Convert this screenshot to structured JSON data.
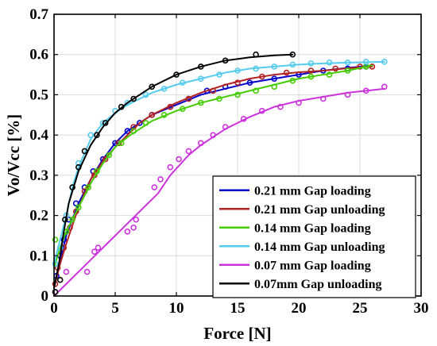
{
  "chart_data": {
    "type": "scatter",
    "xlabel": "Force [N]",
    "ylabel": "Vo/Vcc [%]",
    "xlim": [
      0,
      30
    ],
    "ylim": [
      0,
      0.7
    ],
    "xticks": [
      0,
      5,
      10,
      15,
      20,
      25,
      30
    ],
    "yticks": [
      0,
      0.1,
      0.2,
      0.3,
      0.4,
      0.5,
      0.6,
      0.7
    ],
    "xtick_labels": [
      "0",
      "5",
      "10",
      "15",
      "20",
      "25",
      "30"
    ],
    "ytick_labels": [
      "0",
      "0.1",
      "0.2",
      "0.3",
      "0.4",
      "0.5",
      "0.6",
      "0.7"
    ],
    "grid": true,
    "legend_position": "bottom-right",
    "series": [
      {
        "name": "0.21 mm Gap loading",
        "color": "#0000cc",
        "markers": [
          [
            0.2,
            0.05
          ],
          [
            0.5,
            0.1
          ],
          [
            0.8,
            0.14
          ],
          [
            1.2,
            0.19
          ],
          [
            1.8,
            0.23
          ],
          [
            2.5,
            0.27
          ],
          [
            3.2,
            0.31
          ],
          [
            4.0,
            0.34
          ],
          [
            5.0,
            0.38
          ],
          [
            6.0,
            0.41
          ],
          [
            7.0,
            0.43
          ],
          [
            8.0,
            0.45
          ],
          [
            9.5,
            0.47
          ],
          [
            11.0,
            0.49
          ],
          [
            12.5,
            0.51
          ],
          [
            14.0,
            0.52
          ],
          [
            16.0,
            0.53
          ],
          [
            18.0,
            0.54
          ],
          [
            20.0,
            0.55
          ],
          [
            22.0,
            0.56
          ],
          [
            24.0,
            0.565
          ],
          [
            25.5,
            0.57
          ]
        ],
        "line": [
          [
            0,
            0.02
          ],
          [
            0.5,
            0.09
          ],
          [
            1,
            0.15
          ],
          [
            1.5,
            0.19
          ],
          [
            2,
            0.23
          ],
          [
            3,
            0.29
          ],
          [
            4,
            0.34
          ],
          [
            5,
            0.38
          ],
          [
            6,
            0.41
          ],
          [
            8,
            0.45
          ],
          [
            10,
            0.475
          ],
          [
            12,
            0.5
          ],
          [
            14,
            0.515
          ],
          [
            16,
            0.53
          ],
          [
            18,
            0.54
          ],
          [
            20,
            0.55
          ],
          [
            22,
            0.56
          ],
          [
            24,
            0.567
          ],
          [
            25.8,
            0.572
          ]
        ]
      },
      {
        "name": "0.21 mm Gap unloading",
        "color": "#b22222",
        "markers": [
          [
            0.1,
            0.03
          ],
          [
            0.3,
            0.07
          ],
          [
            0.8,
            0.12
          ],
          [
            1.3,
            0.17
          ],
          [
            1.8,
            0.21
          ],
          [
            2.5,
            0.26
          ],
          [
            3.3,
            0.3
          ],
          [
            4.2,
            0.34
          ],
          [
            5.3,
            0.38
          ],
          [
            6.5,
            0.42
          ],
          [
            8.0,
            0.45
          ],
          [
            9.5,
            0.47
          ],
          [
            11.0,
            0.49
          ],
          [
            13.0,
            0.51
          ],
          [
            15.0,
            0.53
          ],
          [
            17.0,
            0.545
          ],
          [
            19.0,
            0.555
          ],
          [
            21.0,
            0.56
          ],
          [
            23.0,
            0.565
          ],
          [
            25.0,
            0.57
          ],
          [
            26.0,
            0.57
          ]
        ],
        "line": [
          [
            0,
            0.02
          ],
          [
            0.5,
            0.08
          ],
          [
            1,
            0.13
          ],
          [
            2,
            0.22
          ],
          [
            3,
            0.29
          ],
          [
            4,
            0.335
          ],
          [
            5,
            0.37
          ],
          [
            6,
            0.4
          ],
          [
            7,
            0.43
          ],
          [
            8,
            0.45
          ],
          [
            10,
            0.48
          ],
          [
            12,
            0.505
          ],
          [
            14,
            0.525
          ],
          [
            16,
            0.54
          ],
          [
            18,
            0.55
          ],
          [
            20,
            0.556
          ],
          [
            22,
            0.56
          ],
          [
            24,
            0.566
          ],
          [
            26,
            0.57
          ]
        ]
      },
      {
        "name": "0.14 mm Gap loading",
        "color": "#44cc00",
        "markers": [
          [
            0.1,
            0.14
          ],
          [
            0.5,
            0.12
          ],
          [
            1.0,
            0.16
          ],
          [
            1.5,
            0.19
          ],
          [
            2.0,
            0.22
          ],
          [
            2.8,
            0.27
          ],
          [
            3.5,
            0.31
          ],
          [
            4.5,
            0.35
          ],
          [
            5.5,
            0.38
          ],
          [
            6.5,
            0.41
          ],
          [
            7.5,
            0.43
          ],
          [
            9.0,
            0.45
          ],
          [
            10.5,
            0.465
          ],
          [
            12.0,
            0.48
          ],
          [
            13.5,
            0.49
          ],
          [
            15.0,
            0.5
          ],
          [
            16.5,
            0.51
          ],
          [
            18.0,
            0.52
          ],
          [
            19.5,
            0.535
          ],
          [
            21.0,
            0.545
          ],
          [
            22.5,
            0.55
          ],
          [
            24.0,
            0.56
          ],
          [
            25.5,
            0.57
          ]
        ],
        "line": [
          [
            0,
            0.07
          ],
          [
            0.5,
            0.12
          ],
          [
            1,
            0.16
          ],
          [
            2,
            0.22
          ],
          [
            3,
            0.28
          ],
          [
            4,
            0.33
          ],
          [
            5,
            0.37
          ],
          [
            6,
            0.395
          ],
          [
            7,
            0.415
          ],
          [
            8,
            0.435
          ],
          [
            10,
            0.46
          ],
          [
            12,
            0.48
          ],
          [
            14,
            0.495
          ],
          [
            16,
            0.51
          ],
          [
            18,
            0.525
          ],
          [
            20,
            0.54
          ],
          [
            22,
            0.55
          ],
          [
            24,
            0.56
          ],
          [
            26,
            0.573
          ]
        ]
      },
      {
        "name": "0.14 mm Gap unloading",
        "color": "#55ccee",
        "markers": [
          [
            0.1,
            0.08
          ],
          [
            0.5,
            0.12
          ],
          [
            1.0,
            0.2
          ],
          [
            1.5,
            0.27
          ],
          [
            2.0,
            0.33
          ],
          [
            3.0,
            0.4
          ],
          [
            4.0,
            0.43
          ],
          [
            5.0,
            0.46
          ],
          [
            6.0,
            0.48
          ],
          [
            7.5,
            0.5
          ],
          [
            9.0,
            0.515
          ],
          [
            10.5,
            0.53
          ],
          [
            12.0,
            0.54
          ],
          [
            13.5,
            0.55
          ],
          [
            15.0,
            0.56
          ],
          [
            16.5,
            0.565
          ],
          [
            18.0,
            0.57
          ],
          [
            19.5,
            0.575
          ],
          [
            21.0,
            0.578
          ],
          [
            22.5,
            0.58
          ],
          [
            24.0,
            0.58
          ],
          [
            25.5,
            0.582
          ],
          [
            27.0,
            0.582
          ]
        ],
        "line": [
          [
            0,
            0.08
          ],
          [
            0.5,
            0.14
          ],
          [
            1,
            0.2
          ],
          [
            1.5,
            0.27
          ],
          [
            2,
            0.32
          ],
          [
            3,
            0.39
          ],
          [
            4,
            0.43
          ],
          [
            5,
            0.455
          ],
          [
            6,
            0.475
          ],
          [
            8,
            0.505
          ],
          [
            10,
            0.525
          ],
          [
            12,
            0.54
          ],
          [
            14,
            0.555
          ],
          [
            16,
            0.565
          ],
          [
            18,
            0.57
          ],
          [
            20,
            0.575
          ],
          [
            22,
            0.578
          ],
          [
            24,
            0.58
          ],
          [
            27,
            0.582
          ]
        ]
      },
      {
        "name": "0.07 mm Gap loading",
        "color": "#cc33dd",
        "markers": [
          [
            0.1,
            0.01
          ],
          [
            1.0,
            0.06
          ],
          [
            2.7,
            0.06
          ],
          [
            3.3,
            0.11
          ],
          [
            3.6,
            0.12
          ],
          [
            6.0,
            0.16
          ],
          [
            6.5,
            0.17
          ],
          [
            6.7,
            0.19
          ],
          [
            8.2,
            0.27
          ],
          [
            8.7,
            0.29
          ],
          [
            9.5,
            0.32
          ],
          [
            10.2,
            0.34
          ],
          [
            11.0,
            0.36
          ],
          [
            12.0,
            0.38
          ],
          [
            13.0,
            0.4
          ],
          [
            14.0,
            0.42
          ],
          [
            15.5,
            0.44
          ],
          [
            17.0,
            0.46
          ],
          [
            18.5,
            0.47
          ],
          [
            20.0,
            0.48
          ],
          [
            22.0,
            0.49
          ],
          [
            24.0,
            0.5
          ],
          [
            25.5,
            0.51
          ],
          [
            27.0,
            0.52
          ]
        ],
        "line": [
          [
            0,
            0.0
          ],
          [
            2,
            0.06
          ],
          [
            4,
            0.12
          ],
          [
            6,
            0.18
          ],
          [
            8,
            0.24
          ],
          [
            8.5,
            0.255
          ],
          [
            9.5,
            0.3
          ],
          [
            11,
            0.35
          ],
          [
            12,
            0.375
          ],
          [
            14,
            0.415
          ],
          [
            16,
            0.445
          ],
          [
            18,
            0.47
          ],
          [
            20,
            0.485
          ],
          [
            22,
            0.495
          ],
          [
            24,
            0.505
          ],
          [
            27,
            0.515
          ]
        ]
      },
      {
        "name": "0.07mm Gap unloading",
        "color": "#000000",
        "markers": [
          [
            0.1,
            0.01
          ],
          [
            0.5,
            0.04
          ],
          [
            0.9,
            0.19
          ],
          [
            1.5,
            0.27
          ],
          [
            2.0,
            0.32
          ],
          [
            2.5,
            0.36
          ],
          [
            3.5,
            0.4
          ],
          [
            4.2,
            0.43
          ],
          [
            5.5,
            0.47
          ],
          [
            6.5,
            0.49
          ],
          [
            8.0,
            0.52
          ],
          [
            10.0,
            0.55
          ],
          [
            12.0,
            0.57
          ],
          [
            14.0,
            0.585
          ],
          [
            16.5,
            0.6
          ],
          [
            19.5,
            0.6
          ]
        ],
        "line": [
          [
            0,
            0.02
          ],
          [
            0.4,
            0.08
          ],
          [
            0.8,
            0.16
          ],
          [
            1.2,
            0.23
          ],
          [
            2,
            0.31
          ],
          [
            3,
            0.375
          ],
          [
            4,
            0.42
          ],
          [
            5,
            0.455
          ],
          [
            6,
            0.48
          ],
          [
            8,
            0.52
          ],
          [
            10,
            0.55
          ],
          [
            12,
            0.57
          ],
          [
            14,
            0.585
          ],
          [
            16,
            0.593
          ],
          [
            18,
            0.598
          ],
          [
            19.5,
            0.6
          ]
        ]
      }
    ]
  }
}
